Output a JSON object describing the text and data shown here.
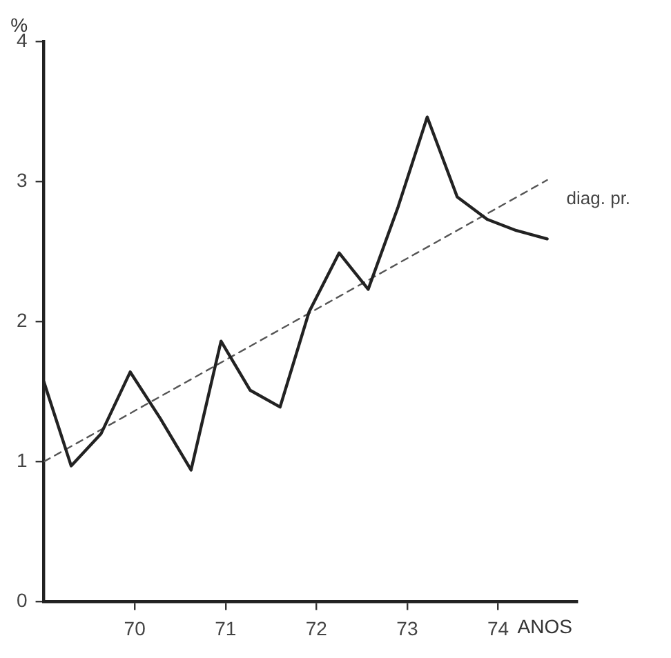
{
  "chart_data": {
    "type": "line",
    "xlabel": "ANOS",
    "ylabel": "%",
    "x": [
      69.0,
      69.3,
      69.63,
      69.95,
      70.28,
      70.62,
      70.95,
      71.27,
      71.6,
      71.92,
      72.25,
      72.57,
      72.9,
      73.22,
      73.55,
      73.88,
      74.2,
      74.54
    ],
    "series": [
      {
        "color": "#222222",
        "values": [
          1.57,
          0.97,
          1.2,
          1.64,
          1.31,
          0.94,
          1.86,
          1.51,
          1.39,
          2.07,
          2.49,
          2.23,
          2.82,
          3.46,
          2.89,
          2.73,
          2.65,
          2.59
        ]
      },
      {
        "name": "diag. pr.",
        "type": "line",
        "line_style": "dashed",
        "color": "#555555",
        "x": [
          69.0,
          74.54
        ],
        "values": [
          1.0,
          3.01
        ]
      }
    ],
    "xlim": [
      69.0,
      74.87
    ],
    "xticks": [
      70,
      71,
      72,
      73,
      74
    ],
    "ylim": [
      0,
      4
    ],
    "yticks": [
      0,
      1,
      2,
      3,
      4
    ],
    "grid": false,
    "legend": false,
    "marker": "none",
    "line_style": "solid"
  }
}
